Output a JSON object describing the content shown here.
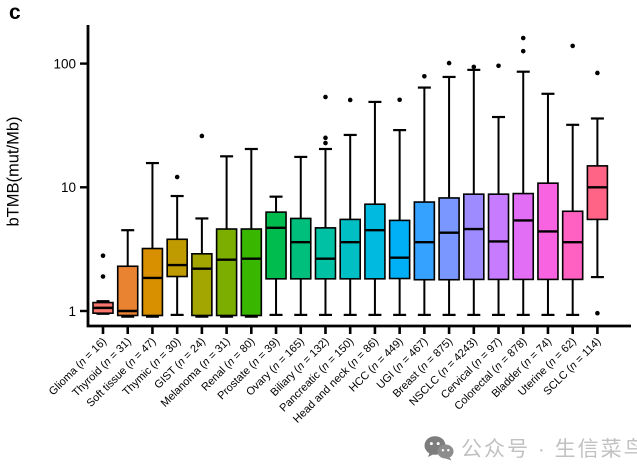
{
  "figure": {
    "panel_label": "c",
    "watermark_text": "公众号 · 生信菜鸟团",
    "watermark_icon": "wechat-icon",
    "watermark_text_color": "#c1c1c1",
    "watermark_icon_color": "#7d7d7d"
  },
  "chart_data": {
    "type": "box",
    "title": "",
    "xlabel": "",
    "ylabel": "bTMB(mut/Mb)",
    "y_scale": "log10",
    "y_ticks": [
      1,
      10,
      100
    ],
    "ylim": [
      0.75,
      205
    ],
    "grid": false,
    "axis_color": "#000000",
    "legend": "none",
    "categories": [
      {
        "name": "Glioma",
        "n": 16,
        "label": "Glioma (n = 16)",
        "color": "#F8766D",
        "whisker_low": 0.95,
        "q1": 0.96,
        "median": 1.06,
        "q3": 1.17,
        "whisker_high": 1.2,
        "outliers": [
          1.9,
          2.8
        ]
      },
      {
        "name": "Thyroid",
        "n": 31,
        "label": "Thyroid (n = 31)",
        "color": "#EA8331",
        "whisker_low": 0.9,
        "q1": 0.92,
        "median": 1.0,
        "q3": 2.3,
        "whisker_high": 4.5,
        "outliers": []
      },
      {
        "name": "Soft tissue",
        "n": 47,
        "label": "Soft tissue (n = 47)",
        "color": "#D89000",
        "whisker_low": 0.9,
        "q1": 0.92,
        "median": 1.85,
        "q3": 3.2,
        "whisker_high": 15.7,
        "outliers": []
      },
      {
        "name": "Thymic",
        "n": 30,
        "label": "Thymic (n = 30)",
        "color": "#C09B00",
        "whisker_low": 0.93,
        "q1": 1.9,
        "median": 2.35,
        "q3": 3.8,
        "whisker_high": 8.5,
        "outliers": [
          12.1
        ]
      },
      {
        "name": "GIST",
        "n": 24,
        "label": "GIST (n = 24)",
        "color": "#A3A500",
        "whisker_low": 0.9,
        "q1": 0.92,
        "median": 2.2,
        "q3": 2.9,
        "whisker_high": 5.6,
        "outliers": [
          26
        ]
      },
      {
        "name": "Melanoma",
        "n": 31,
        "label": "Melanoma (n = 31)",
        "color": "#7CAE00",
        "whisker_low": 0.9,
        "q1": 0.92,
        "median": 2.6,
        "q3": 4.6,
        "whisker_high": 17.8,
        "outliers": []
      },
      {
        "name": "Renal",
        "n": 80,
        "label": "Renal (n = 80)",
        "color": "#39B600",
        "whisker_low": 0.9,
        "q1": 0.92,
        "median": 2.65,
        "q3": 4.6,
        "whisker_high": 20.4,
        "outliers": []
      },
      {
        "name": "Prostate",
        "n": 39,
        "label": "Prostate (n = 39)",
        "color": "#00BB4E",
        "whisker_low": 0.93,
        "q1": 1.82,
        "median": 4.7,
        "q3": 6.3,
        "whisker_high": 8.4,
        "outliers": []
      },
      {
        "name": "Ovary",
        "n": 165,
        "label": "Ovary (n = 165)",
        "color": "#00BF7D",
        "whisker_low": 0.93,
        "q1": 1.82,
        "median": 3.6,
        "q3": 5.6,
        "whisker_high": 17.6,
        "outliers": []
      },
      {
        "name": "Biliary",
        "n": 132,
        "label": "Biliary (n = 132)",
        "color": "#00C1A3",
        "whisker_low": 0.93,
        "q1": 1.82,
        "median": 2.65,
        "q3": 4.7,
        "whisker_high": 20.4,
        "outliers": [
          22.8,
          25.1,
          53.7
        ]
      },
      {
        "name": "Pancreatic",
        "n": 150,
        "label": "Pancreatic (n = 150)",
        "color": "#00BFC4",
        "whisker_low": 0.93,
        "q1": 1.82,
        "median": 3.6,
        "q3": 5.5,
        "whisker_high": 26.5,
        "outliers": [
          50.8
        ]
      },
      {
        "name": "Head and neck",
        "n": 86,
        "label": "Head and neck (n = 86)",
        "color": "#00BAE0",
        "whisker_low": 0.93,
        "q1": 1.82,
        "median": 4.5,
        "q3": 7.3,
        "whisker_high": 49,
        "outliers": []
      },
      {
        "name": "HCC",
        "n": 449,
        "label": "HCC (n = 449)",
        "color": "#00B0F6",
        "whisker_low": 0.93,
        "q1": 1.83,
        "median": 2.7,
        "q3": 5.4,
        "whisker_high": 29,
        "outliers": [
          51
        ]
      },
      {
        "name": "UGI",
        "n": 467,
        "label": "UGI (n = 467)",
        "color": "#35A2FF",
        "whisker_low": 0.93,
        "q1": 1.79,
        "median": 3.6,
        "q3": 7.6,
        "whisker_high": 64,
        "outliers": [
          79
        ]
      },
      {
        "name": "Breast",
        "n": 875,
        "label": "Breast (n = 875)",
        "color": "#7997FF",
        "whisker_low": 0.93,
        "q1": 1.79,
        "median": 4.3,
        "q3": 8.2,
        "whisker_high": 78,
        "outliers": [
          101
        ]
      },
      {
        "name": "NSCLC",
        "n": 4243,
        "label": "NSCLC (n = 4243)",
        "color": "#9E8BFF",
        "whisker_low": 0.93,
        "q1": 1.8,
        "median": 4.6,
        "q3": 8.8,
        "whisker_high": 89,
        "outliers": [
          94
        ]
      },
      {
        "name": "Cervical",
        "n": 97,
        "label": "Cervical (n = 97)",
        "color": "#C77CFF",
        "whisker_low": 0.93,
        "q1": 1.8,
        "median": 3.65,
        "q3": 8.8,
        "whisker_high": 37,
        "outliers": [
          96
        ]
      },
      {
        "name": "Colorectal",
        "n": 878,
        "label": "Colorectal (n = 878)",
        "color": "#E36EF6",
        "whisker_low": 0.93,
        "q1": 1.8,
        "median": 5.4,
        "q3": 8.9,
        "whisker_high": 86,
        "outliers": [
          126,
          161
        ]
      },
      {
        "name": "Bladder",
        "n": 74,
        "label": "Bladder (n = 74)",
        "color": "#F763E0",
        "whisker_low": 0.93,
        "q1": 1.8,
        "median": 4.4,
        "q3": 10.8,
        "whisker_high": 57,
        "outliers": []
      },
      {
        "name": "Uterine",
        "n": 62,
        "label": "Uterine (n = 62)",
        "color": "#FF61C3",
        "whisker_low": 0.93,
        "q1": 1.8,
        "median": 3.6,
        "q3": 6.4,
        "whisker_high": 32,
        "outliers": [
          139
        ]
      },
      {
        "name": "SCLC",
        "n": 114,
        "label": "SCLC (n = 114)",
        "color": "#FF6386",
        "whisker_low": 1.88,
        "q1": 5.5,
        "median": 10,
        "q3": 14.9,
        "whisker_high": 36,
        "outliers": [
          84,
          0.96
        ]
      }
    ]
  }
}
